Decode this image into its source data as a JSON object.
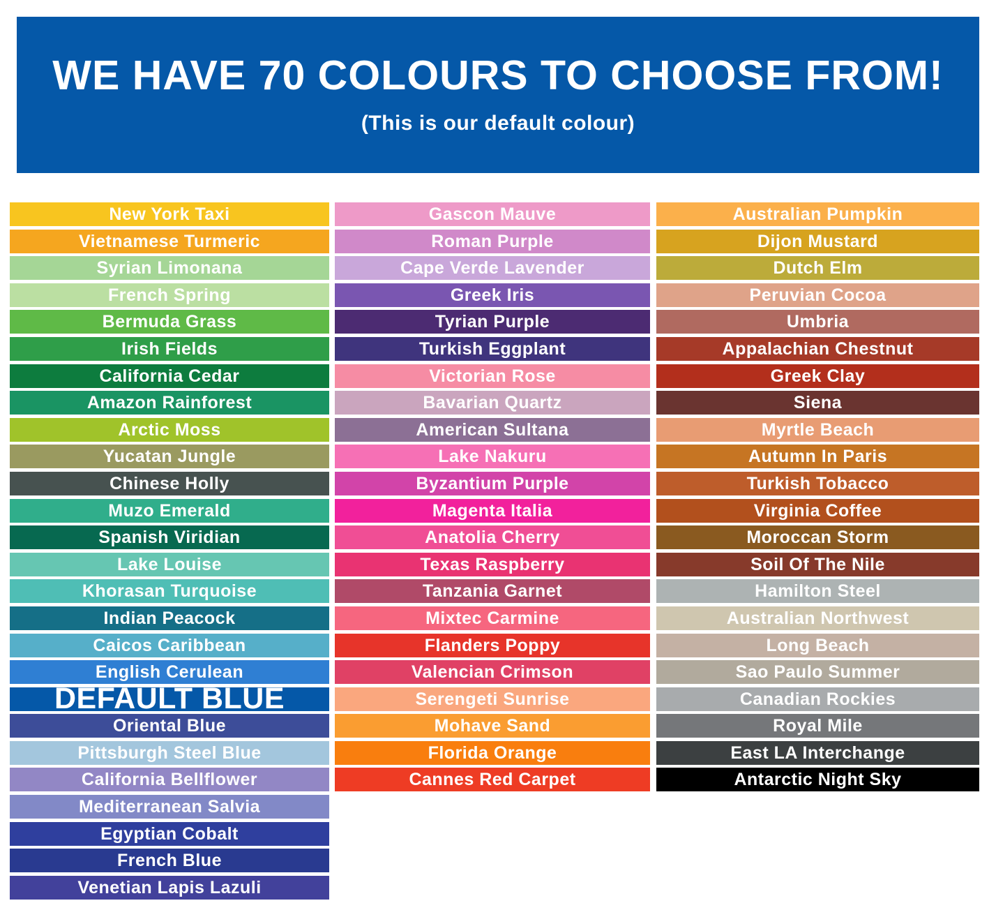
{
  "header": {
    "title": "WE HAVE 70 COLOURS TO CHOOSE FROM!",
    "subtitle": "(This is our default colour)",
    "background": "#0558A8",
    "text_color": "#FFFFFF"
  },
  "chart_data": {
    "type": "table",
    "title": "WE HAVE 70 COLOURS TO CHOOSE FROM!",
    "subtitle": "(This is our default colour)",
    "total_colours": 70,
    "default_colour": {
      "name": "DEFAULT BLUE",
      "hex": "#0558A8"
    },
    "columns": [
      {
        "swatches": [
          {
            "name": "New York Taxi",
            "hex": "#F8C51F"
          },
          {
            "name": "Vietnamese Turmeric",
            "hex": "#F5A61F"
          },
          {
            "name": "Syrian Limonana",
            "hex": "#A5D696"
          },
          {
            "name": "French Spring",
            "hex": "#BBDFA2"
          },
          {
            "name": "Bermuda Grass",
            "hex": "#5FBA47"
          },
          {
            "name": "Irish Fields",
            "hex": "#2F9E49"
          },
          {
            "name": "California Cedar",
            "hex": "#0D7C3E"
          },
          {
            "name": "Amazon Rainforest",
            "hex": "#1A9463"
          },
          {
            "name": "Arctic Moss",
            "hex": "#A0C32A"
          },
          {
            "name": "Yucatan Jungle",
            "hex": "#9A9A60"
          },
          {
            "name": "Chinese Holly",
            "hex": "#475250"
          },
          {
            "name": "Muzo Emerald",
            "hex": "#30AE8B"
          },
          {
            "name": "Spanish Viridian",
            "hex": "#076950"
          },
          {
            "name": "Lake Louise",
            "hex": "#66C6B2"
          },
          {
            "name": "Khorasan Turquoise",
            "hex": "#4FBEB5"
          },
          {
            "name": "Indian Peacock",
            "hex": "#156F87"
          },
          {
            "name": "Caicos Caribbean",
            "hex": "#56AFC9"
          },
          {
            "name": "English Cerulean",
            "hex": "#2F7FD3"
          },
          {
            "name": "DEFAULT BLUE",
            "hex": "#0558A8",
            "is_default": true
          },
          {
            "name": "Oriental Blue",
            "hex": "#3D4D99"
          },
          {
            "name": "Pittsburgh Steel Blue",
            "hex": "#A3C6DD"
          },
          {
            "name": "California Bellflower",
            "hex": "#9287C5"
          },
          {
            "name": "Mediterranean Salvia",
            "hex": "#8289C7"
          },
          {
            "name": "Egyptian Cobalt",
            "hex": "#2F3F9E"
          },
          {
            "name": "French Blue",
            "hex": "#293A90"
          },
          {
            "name": "Venetian Lapis Lazuli",
            "hex": "#42419B"
          }
        ]
      },
      {
        "swatches": [
          {
            "name": "Gascon Mauve",
            "hex": "#EE9AC8"
          },
          {
            "name": "Roman Purple",
            "hex": "#D089C9"
          },
          {
            "name": "Cape Verde Lavender",
            "hex": "#C9A7DA"
          },
          {
            "name": "Greek Iris",
            "hex": "#7A56B1"
          },
          {
            "name": "Tyrian Purple",
            "hex": "#4C2B72"
          },
          {
            "name": "Turkish Eggplant",
            "hex": "#3F347D"
          },
          {
            "name": "Victorian Rose",
            "hex": "#F68CA4"
          },
          {
            "name": "Bavarian Quartz",
            "hex": "#CAA5BE"
          },
          {
            "name": "American Sultana",
            "hex": "#8C7095"
          },
          {
            "name": "Lake Nakuru",
            "hex": "#F670B5"
          },
          {
            "name": "Byzantium Purple",
            "hex": "#D244A9"
          },
          {
            "name": "Magenta Italia",
            "hex": "#F2219C"
          },
          {
            "name": "Anatolia Cherry",
            "hex": "#F04E95"
          },
          {
            "name": "Texas Raspberry",
            "hex": "#E93372"
          },
          {
            "name": "Tanzania Garnet",
            "hex": "#B04A68"
          },
          {
            "name": "Mixtec Carmine",
            "hex": "#F6667F"
          },
          {
            "name": "Flanders Poppy",
            "hex": "#E7342A"
          },
          {
            "name": "Valencian Crimson",
            "hex": "#E04165"
          },
          {
            "name": "Serengeti Sunrise",
            "hex": "#FAA77E"
          },
          {
            "name": "Mohave Sand",
            "hex": "#FA9D31"
          },
          {
            "name": "Florida Orange",
            "hex": "#F97E0E"
          },
          {
            "name": "Cannes Red Carpet",
            "hex": "#EE3C24"
          }
        ]
      },
      {
        "swatches": [
          {
            "name": "Australian Pumpkin",
            "hex": "#FBB04B"
          },
          {
            "name": "Dijon Mustard",
            "hex": "#D7A31F"
          },
          {
            "name": "Dutch Elm",
            "hex": "#BCAB3A"
          },
          {
            "name": "Peruvian Cocoa",
            "hex": "#DFA389"
          },
          {
            "name": "Umbria",
            "hex": "#B06A60"
          },
          {
            "name": "Appalachian Chestnut",
            "hex": "#A63A28"
          },
          {
            "name": "Greek Clay",
            "hex": "#B32F1C"
          },
          {
            "name": "Siena",
            "hex": "#6A3430"
          },
          {
            "name": "Myrtle Beach",
            "hex": "#E89C73"
          },
          {
            "name": "Autumn In Paris",
            "hex": "#C67523"
          },
          {
            "name": "Turkish Tobacco",
            "hex": "#BE5D2B"
          },
          {
            "name": "Virginia Coffee",
            "hex": "#B2501D"
          },
          {
            "name": "Moroccan Storm",
            "hex": "#8A5A20"
          },
          {
            "name": "Soil Of The Nile",
            "hex": "#873A2B"
          },
          {
            "name": "Hamilton Steel",
            "hex": "#ADB3B3"
          },
          {
            "name": "Australian Northwest",
            "hex": "#CFC6AF"
          },
          {
            "name": "Long Beach",
            "hex": "#C4B1A4"
          },
          {
            "name": "Sao Paulo Summer",
            "hex": "#B1AA9D"
          },
          {
            "name": "Canadian Rockies",
            "hex": "#A8ABAD"
          },
          {
            "name": "Royal Mile",
            "hex": "#75777A"
          },
          {
            "name": "East LA Interchange",
            "hex": "#3C4041"
          },
          {
            "name": "Antarctic Night Sky",
            "hex": "#000000"
          }
        ]
      }
    ]
  }
}
